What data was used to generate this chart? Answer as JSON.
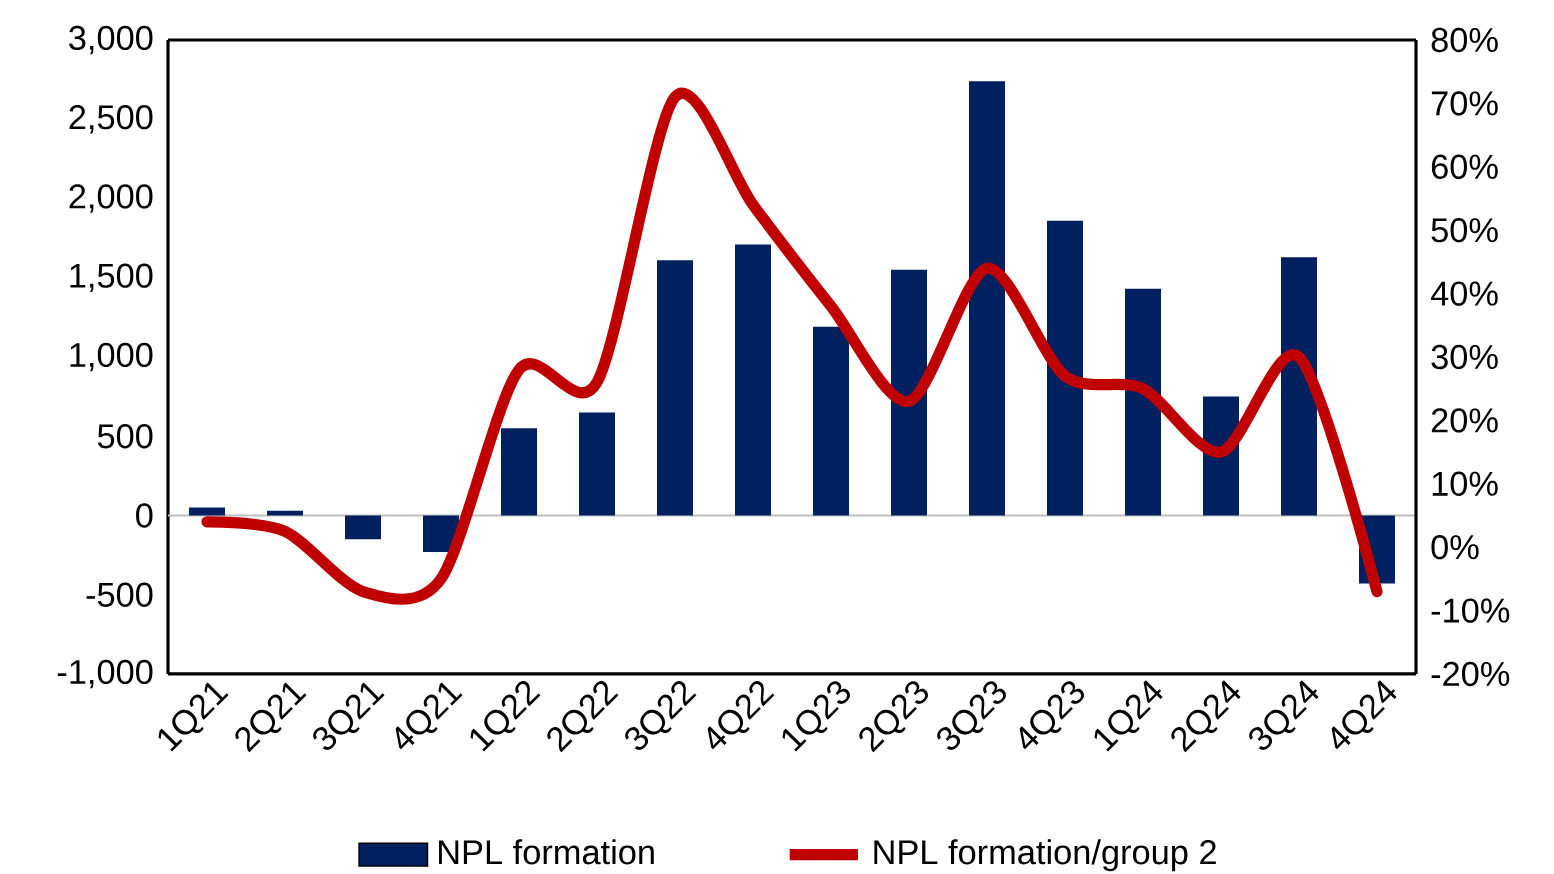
{
  "chart_data": {
    "type": "bar",
    "categories": [
      "1Q21",
      "2Q21",
      "3Q21",
      "4Q21",
      "1Q22",
      "2Q22",
      "3Q22",
      "4Q22",
      "1Q23",
      "2Q23",
      "3Q23",
      "4Q23",
      "1Q24",
      "2Q24",
      "3Q24",
      "4Q24"
    ],
    "series": [
      {
        "name": "NPL formation",
        "color": "#002060",
        "values": [
          50,
          30,
          -150,
          -230,
          550,
          650,
          1610,
          1710,
          1190,
          1550,
          2740,
          1860,
          1430,
          750,
          1630,
          -430
        ]
      },
      {
        "name": "NPL formation/group 2",
        "type": "line",
        "axis": "y2",
        "color": "#c00000",
        "values": [
          4,
          2.5,
          -7,
          -5,
          28,
          26,
          71,
          54,
          38,
          23,
          44,
          27,
          25,
          15,
          30,
          -7
        ]
      }
    ],
    "ylim": [
      -1000,
      3000
    ],
    "yticks": [
      {
        "value": -1000,
        "label": "-1,000"
      },
      {
        "value": -500,
        "label": "-500"
      },
      {
        "value": 0,
        "label": "0"
      },
      {
        "value": 500,
        "label": "500"
      },
      {
        "value": 1000,
        "label": "1,000"
      },
      {
        "value": 1500,
        "label": "1,500"
      },
      {
        "value": 2000,
        "label": "2,000"
      },
      {
        "value": 2500,
        "label": "2,500"
      },
      {
        "value": 3000,
        "label": "3,000"
      }
    ],
    "y2lim": [
      -20,
      80
    ],
    "y2ticks": [
      {
        "value": -20,
        "label": "-20%"
      },
      {
        "value": -10,
        "label": "-10%"
      },
      {
        "value": 0,
        "label": "0%"
      },
      {
        "value": 10,
        "label": "10%"
      },
      {
        "value": 20,
        "label": "20%"
      },
      {
        "value": 30,
        "label": "30%"
      },
      {
        "value": 40,
        "label": "40%"
      },
      {
        "value": 50,
        "label": "50%"
      },
      {
        "value": 60,
        "label": "60%"
      },
      {
        "value": 70,
        "label": "70%"
      },
      {
        "value": 80,
        "label": "80%"
      }
    ],
    "ref_lines": [
      {
        "axis": "y",
        "value": 0,
        "color": "#bfbfbf"
      }
    ],
    "legend": "bottom",
    "grid": false,
    "marker": "none",
    "line_style": "solid"
  }
}
